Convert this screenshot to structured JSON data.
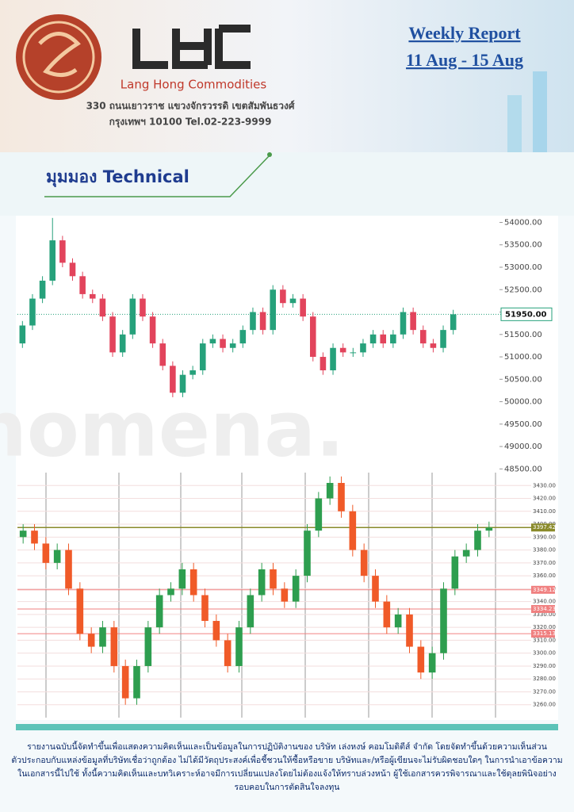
{
  "header": {
    "company": "Lang Hong Commodities",
    "address_1": "330 ถนนเยาวราช แขวงจักรวรรดิ เขตสัมพันธวงศ์",
    "address_2": "กรุงเทพฯ 10100 Tel.02-223-9999",
    "report_title": "Weekly Report",
    "report_period": "11 Aug - 15 Aug"
  },
  "section_title": "มุมมอง Technical",
  "chart_data": [
    {
      "type": "candlestick",
      "watermark": "nomena.",
      "up_color": "#26a17b",
      "down_color": "#e2445c",
      "grid": false,
      "ylim": [
        48400,
        54150
      ],
      "yticks": [
        {
          "value": 48500,
          "label": "48500.00"
        },
        {
          "value": 49000,
          "label": "49000.00"
        },
        {
          "value": 49500,
          "label": "49500.00"
        },
        {
          "value": 50000,
          "label": "50000.00"
        },
        {
          "value": 50500,
          "label": "50500.00"
        },
        {
          "value": 51000,
          "label": "51000.00"
        },
        {
          "value": 51500,
          "label": "51500.00"
        },
        {
          "value": 52000,
          "label": "52000.00"
        },
        {
          "value": 52500,
          "label": "52500.00"
        },
        {
          "value": 53000,
          "label": "53000.00"
        },
        {
          "value": 53500,
          "label": "53500.00"
        },
        {
          "value": 54000,
          "label": "54000.00"
        }
      ],
      "last_price": {
        "value": 51950,
        "label": "51950.00"
      },
      "open": [
        51300,
        51700,
        52300,
        52700,
        53600,
        53100,
        52800,
        52400,
        52300,
        51900,
        51100,
        51500,
        52300,
        51900,
        51300,
        50800,
        50200,
        50600,
        50700,
        51300,
        51400,
        51200,
        51300,
        51600,
        52000,
        51600,
        52500,
        52200,
        52300,
        51900,
        51000,
        50700,
        51200,
        51100,
        51100,
        51300,
        51500,
        51300,
        51500,
        52000,
        51600,
        51300,
        51200,
        51600
      ],
      "high": [
        51800,
        52400,
        52800,
        54100,
        53700,
        53200,
        52900,
        52500,
        52400,
        52000,
        51600,
        52400,
        52400,
        52000,
        51400,
        50900,
        50700,
        50800,
        51400,
        51500,
        51500,
        51400,
        51700,
        52100,
        52100,
        52600,
        52600,
        52400,
        52400,
        52000,
        51100,
        51300,
        51300,
        51200,
        51400,
        51600,
        51600,
        51600,
        52100,
        52100,
        51700,
        51400,
        51700,
        52050
      ],
      "low": [
        51200,
        51600,
        52200,
        52600,
        53000,
        52700,
        52300,
        52200,
        51800,
        51000,
        51000,
        51400,
        51800,
        51200,
        50700,
        50100,
        50100,
        50500,
        50600,
        51200,
        51100,
        51100,
        51200,
        51500,
        51500,
        51500,
        52100,
        52100,
        51800,
        50900,
        50600,
        50600,
        51000,
        51000,
        51000,
        51200,
        51200,
        51200,
        51400,
        51500,
        51200,
        51100,
        51100,
        51500
      ],
      "close": [
        51700,
        52300,
        52700,
        53600,
        53100,
        52800,
        52400,
        52300,
        51900,
        51100,
        51500,
        52300,
        51900,
        51300,
        50800,
        50200,
        50600,
        50700,
        51300,
        51400,
        51200,
        51300,
        51600,
        52000,
        51600,
        52500,
        52200,
        52300,
        51900,
        51000,
        50700,
        51200,
        51100,
        51100,
        51300,
        51500,
        51300,
        51500,
        52000,
        51600,
        51300,
        51200,
        51600,
        51950
      ]
    },
    {
      "type": "candlestick",
      "up_color": "#2e9e4f",
      "down_color": "#f05a28",
      "grid": true,
      "ylim": [
        3250,
        3440
      ],
      "yticks": [
        {
          "value": 3260,
          "label": "3260.00"
        },
        {
          "value": 3270,
          "label": "3270.00"
        },
        {
          "value": 3280,
          "label": "3280.00"
        },
        {
          "value": 3290,
          "label": "3290.00"
        },
        {
          "value": 3300,
          "label": "3300.00"
        },
        {
          "value": 3310,
          "label": "3310.00"
        },
        {
          "value": 3320,
          "label": "3320.00"
        },
        {
          "value": 3330,
          "label": "3330.00"
        },
        {
          "value": 3340,
          "label": "3340.00"
        },
        {
          "value": 3350,
          "label": "3350.00"
        },
        {
          "value": 3360,
          "label": "3360.00"
        },
        {
          "value": 3370,
          "label": "3370.00"
        },
        {
          "value": 3380,
          "label": "3380.00"
        },
        {
          "value": 3390,
          "label": "3390.00"
        },
        {
          "value": 3400,
          "label": "3400.00"
        },
        {
          "value": 3410,
          "label": "3410.00"
        },
        {
          "value": 3420,
          "label": "3420.00"
        },
        {
          "value": 3430,
          "label": "3430.00"
        }
      ],
      "levels": [
        {
          "value": 3397.42,
          "color": "#8a8a2a"
        },
        {
          "value": 3349.12,
          "color": "#f08080"
        },
        {
          "value": 3334.23,
          "color": "#f08080"
        },
        {
          "value": 3315.13,
          "color": "#f08080"
        }
      ],
      "open": [
        3390,
        3395,
        3385,
        3370,
        3380,
        3350,
        3315,
        3305,
        3320,
        3290,
        3265,
        3290,
        3320,
        3345,
        3350,
        3365,
        3345,
        3325,
        3310,
        3290,
        3320,
        3345,
        3365,
        3350,
        3340,
        3360,
        3395,
        3420,
        3432,
        3410,
        3380,
        3360,
        3340,
        3320,
        3330,
        3305,
        3285,
        3300,
        3350,
        3375,
        3380,
        3395
      ],
      "high": [
        3400,
        3400,
        3390,
        3385,
        3385,
        3355,
        3320,
        3325,
        3325,
        3295,
        3295,
        3325,
        3350,
        3355,
        3370,
        3370,
        3350,
        3330,
        3315,
        3325,
        3350,
        3370,
        3370,
        3355,
        3365,
        3400,
        3425,
        3437,
        3437,
        3415,
        3385,
        3365,
        3345,
        3335,
        3335,
        3310,
        3305,
        3355,
        3380,
        3385,
        3400,
        3402
      ],
      "low": [
        3385,
        3380,
        3365,
        3365,
        3345,
        3310,
        3300,
        3300,
        3285,
        3260,
        3260,
        3285,
        3315,
        3340,
        3345,
        3340,
        3320,
        3305,
        3285,
        3285,
        3315,
        3340,
        3345,
        3335,
        3335,
        3355,
        3390,
        3415,
        3405,
        3375,
        3355,
        3335,
        3315,
        3315,
        3300,
        3280,
        3280,
        3295,
        3345,
        3370,
        3375,
        3390
      ],
      "close": [
        3395,
        3385,
        3370,
        3380,
        3350,
        3315,
        3305,
        3320,
        3290,
        3265,
        3290,
        3320,
        3345,
        3350,
        3365,
        3345,
        3325,
        3310,
        3290,
        3320,
        3345,
        3365,
        3350,
        3340,
        3360,
        3395,
        3420,
        3432,
        3410,
        3380,
        3360,
        3340,
        3320,
        3330,
        3305,
        3285,
        3300,
        3350,
        3375,
        3380,
        3395,
        3397.42
      ]
    }
  ],
  "disclaimer": "รายงานฉบับนี้จัดทำขึ้นเพื่อแสดงความคิดเห็นและเป็นข้อมูลในการปฏิบัติงานของ บริษัท เล่งหงษ์ คอมโมดิตีส์ จำกัด โดยจัดทำขึ้นด้วยความเห็นส่วนตัวประกอบกับแหล่งข้อมูลที่บริษัทเชื่อว่าถูกต้อง ไม่ได้มีวัตถุประสงค์เพื่อชี้ชวนให้ซื้อหรือขาย บริษัทและ/หรือผู้เขียนจะไม่รับผิดชอบใดๆ ในการนำเอาข้อความในเอกสารนี้ไปใช้ ทั้งนี้ความคิดเห็นและบทวิเคราะห์อาจมีการเปลี่ยนแปลงโดยไม่ต้องแจ้งให้ทราบล่วงหน้า ผู้ใช้เอกสารควรพิจารณาและใช้ดุลยพินิจอย่างรอบคอบในการตัดสินใจลงทุน"
}
